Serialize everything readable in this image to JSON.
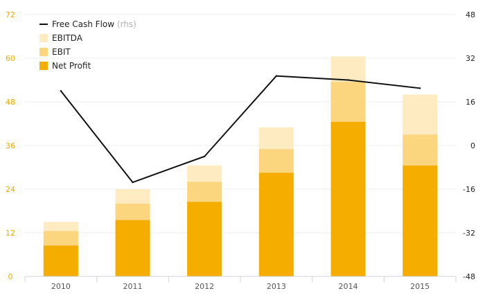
{
  "chart_data": {
    "type": "bar",
    "stacked": true,
    "categories": [
      "2010",
      "2011",
      "2012",
      "2013",
      "2014",
      "2015"
    ],
    "series": [
      {
        "name": "Net Profit",
        "color": "#f5ae00",
        "values": [
          8.5,
          15.5,
          20.5,
          28.5,
          42.5,
          30.5
        ]
      },
      {
        "name": "EBIT",
        "color": "#fcd57f",
        "values": [
          12.5,
          20.0,
          26.0,
          35.0,
          53.5,
          39.0
        ]
      },
      {
        "name": "EBITDA",
        "color": "#feebc2",
        "values": [
          15.0,
          24.0,
          30.5,
          41.0,
          60.5,
          50.0
        ]
      }
    ],
    "line_series": {
      "name": "Free Cash Flow",
      "axis": "right",
      "axis_note": "(rhs)",
      "color": "#111111",
      "values": [
        20,
        -13.5,
        -4,
        25.5,
        24,
        21
      ]
    },
    "ylim_left": [
      0,
      72
    ],
    "yticks_left": [
      0,
      12,
      24,
      36,
      48,
      60,
      72
    ],
    "ylim_right": [
      -48,
      48
    ],
    "yticks_right": [
      -48,
      -32,
      -16,
      0,
      16,
      32,
      48
    ],
    "grid": true,
    "legend_position": "top-left",
    "legend": [
      {
        "label": "Free Cash Flow",
        "note": "(rhs)",
        "kind": "line"
      },
      {
        "label": "EBITDA",
        "kind": "box"
      },
      {
        "label": "EBIT",
        "kind": "box"
      },
      {
        "label": "Net Profit",
        "kind": "box"
      }
    ]
  }
}
